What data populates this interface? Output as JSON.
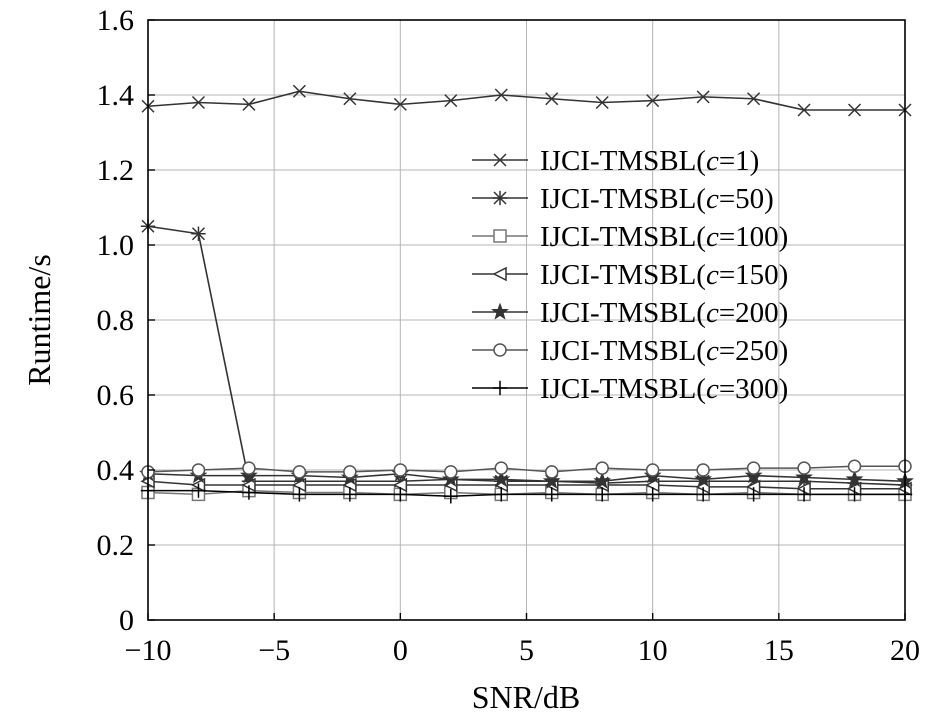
{
  "chart_data": {
    "type": "line",
    "title": "",
    "xlabel": "SNR/dB",
    "ylabel": "Runtime/s",
    "xlim": [
      -10,
      20
    ],
    "ylim": [
      0,
      1.6
    ],
    "xticks": [
      -10,
      -5,
      0,
      5,
      10,
      15,
      20
    ],
    "xtick_labels": [
      "−10",
      "−5",
      "0",
      "5",
      "10",
      "15",
      "20"
    ],
    "yticks": [
      0,
      0.2,
      0.4,
      0.6,
      0.8,
      1.0,
      1.2,
      1.4,
      1.6
    ],
    "ytick_labels": [
      "0",
      "0.2",
      "0.4",
      "0.6",
      "0.8",
      "1.0",
      "1.2",
      "1.4",
      "1.6"
    ],
    "grid": true,
    "legend_position": "right",
    "x": [
      -10,
      -8,
      -6,
      -4,
      -2,
      0,
      2,
      4,
      6,
      8,
      10,
      12,
      14,
      16,
      18,
      20
    ],
    "series": [
      {
        "name_prefix": "IJCI-TMSBL(",
        "name_var": "c",
        "name_suffix": "=1)",
        "marker": "x",
        "color": "#333333",
        "values": [
          1.37,
          1.38,
          1.375,
          1.41,
          1.39,
          1.375,
          1.385,
          1.4,
          1.39,
          1.38,
          1.385,
          1.395,
          1.39,
          1.36,
          1.36,
          1.36
        ]
      },
      {
        "name_prefix": "IJCI-TMSBL(",
        "name_var": "c",
        "name_suffix": "=50)",
        "marker": "asterisk",
        "color": "#333333",
        "values": [
          1.05,
          1.03,
          0.37,
          0.37,
          0.37,
          0.37,
          0.375,
          0.37,
          0.37,
          0.365,
          0.37,
          0.37,
          0.37,
          0.37,
          0.365,
          0.36
        ]
      },
      {
        "name_prefix": "IJCI-TMSBL(",
        "name_var": "c",
        "name_suffix": "=100)",
        "marker": "square",
        "color": "#777777",
        "values": [
          0.34,
          0.335,
          0.345,
          0.34,
          0.34,
          0.335,
          0.34,
          0.335,
          0.34,
          0.335,
          0.34,
          0.335,
          0.34,
          0.335,
          0.335,
          0.335
        ]
      },
      {
        "name_prefix": "IJCI-TMSBL(",
        "name_var": "c",
        "name_suffix": "=150)",
        "marker": "triangle-left",
        "color": "#333333",
        "values": [
          0.37,
          0.36,
          0.36,
          0.36,
          0.36,
          0.36,
          0.36,
          0.36,
          0.36,
          0.36,
          0.36,
          0.355,
          0.355,
          0.35,
          0.35,
          0.35
        ]
      },
      {
        "name_prefix": "IJCI-TMSBL(",
        "name_var": "c",
        "name_suffix": "=200)",
        "marker": "star",
        "color": "#333333",
        "values": [
          0.39,
          0.385,
          0.385,
          0.385,
          0.38,
          0.39,
          0.375,
          0.375,
          0.37,
          0.37,
          0.385,
          0.375,
          0.385,
          0.38,
          0.375,
          0.37
        ]
      },
      {
        "name_prefix": "IJCI-TMSBL(",
        "name_var": "c",
        "name_suffix": "=250)",
        "marker": "circle",
        "color": "#555555",
        "values": [
          0.395,
          0.4,
          0.405,
          0.395,
          0.395,
          0.4,
          0.395,
          0.405,
          0.395,
          0.405,
          0.4,
          0.4,
          0.405,
          0.405,
          0.41,
          0.41
        ]
      },
      {
        "name_prefix": "IJCI-TMSBL(",
        "name_var": "c",
        "name_suffix": "=300)",
        "marker": "plus",
        "color": "#000000",
        "values": [
          0.345,
          0.345,
          0.34,
          0.335,
          0.335,
          0.335,
          0.33,
          0.335,
          0.335,
          0.335,
          0.335,
          0.335,
          0.335,
          0.335,
          0.335,
          0.335
        ]
      }
    ]
  }
}
